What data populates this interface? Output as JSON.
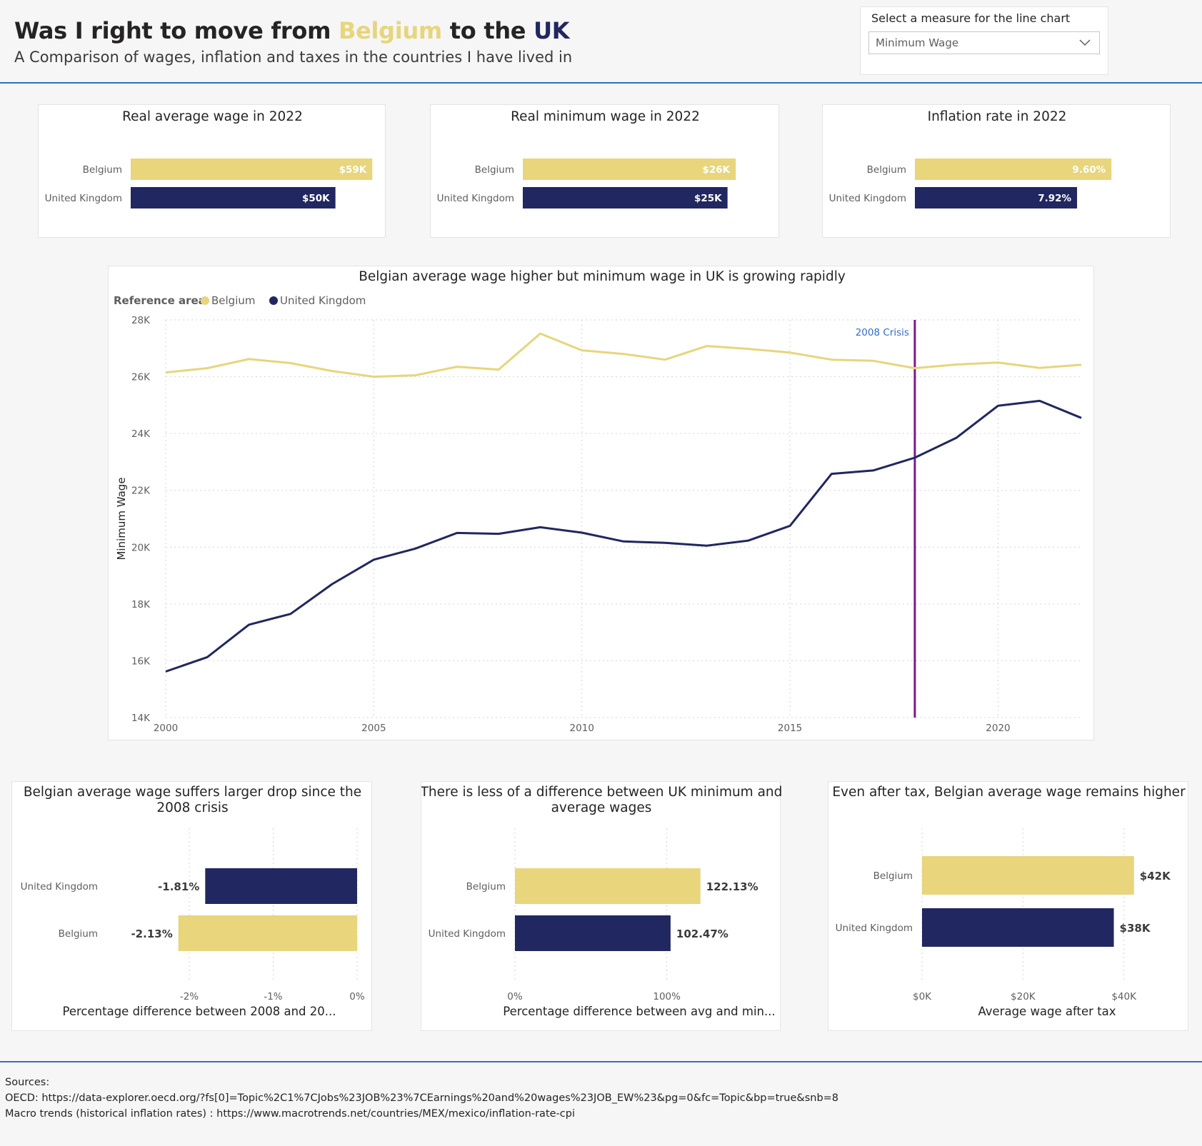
{
  "header": {
    "title_prefix": "Was I right to move from ",
    "title_belgium": "Belgium",
    "title_middle": " to the ",
    "title_uk": "UK",
    "subtitle": "A Comparison of wages, inflation and taxes in the countries I have lived in"
  },
  "slicer": {
    "label": "Select a measure for the line chart",
    "selected": "Minimum Wage"
  },
  "colors": {
    "belgium": "#e8d57c",
    "uk": "#212760",
    "crisis_line": "#7b1a8a",
    "accent": "#2f6fc7"
  },
  "sources": {
    "heading": "Sources:",
    "oecd": "OECD: https://data-explorer.oecd.org/?fs[0]=Topic%2C1%7CJobs%23JOB%23%7CEarnings%20and%20wages%23JOB_EW%23&pg=0&fc=Topic&bp=true&snb=8",
    "macro": "Macro trends (historical inflation rates) : https://www.macrotrends.net/countries/MEX/mexico/inflation-rate-cpi"
  },
  "chart_data": [
    {
      "id": "avg-wage-2022",
      "type": "bar",
      "title": "Real average wage in 2022",
      "categories": [
        "Belgium",
        "United Kingdom"
      ],
      "values": [
        59,
        50
      ],
      "labels": [
        "$59K",
        "$50K"
      ],
      "xlim": [
        0,
        60
      ]
    },
    {
      "id": "min-wage-2022",
      "type": "bar",
      "title": "Real minimum wage in 2022",
      "categories": [
        "Belgium",
        "United Kingdom"
      ],
      "values": [
        26,
        25
      ],
      "labels": [
        "$26K",
        "$25K"
      ],
      "xlim": [
        0,
        30
      ]
    },
    {
      "id": "inflation-2022",
      "type": "bar",
      "title": "Inflation rate in 2022",
      "categories": [
        "Belgium",
        "United Kingdom"
      ],
      "values": [
        9.6,
        7.92
      ],
      "labels": [
        "9.60%",
        "7.92%"
      ],
      "xlim": [
        0,
        12
      ]
    },
    {
      "id": "wage-trend",
      "type": "line",
      "title": "Belgian average wage higher but minimum wage in UK is growing rapidly",
      "legend_title": "Reference area",
      "ylabel": "Minimum Wage",
      "xlabel": "",
      "ylim": [
        14000,
        28000
      ],
      "y_ticks": [
        "14K",
        "16K",
        "18K",
        "20K",
        "22K",
        "24K",
        "26K",
        "28K"
      ],
      "x_ticks": [
        "2000",
        "2005",
        "2010",
        "2015",
        "2020"
      ],
      "xlim": [
        2000,
        2022
      ],
      "annotation": {
        "label": "2008 Crisis",
        "x": 2018
      },
      "x": [
        2000,
        2001,
        2002,
        2003,
        2004,
        2005,
        2006,
        2007,
        2008,
        2009,
        2010,
        2011,
        2012,
        2013,
        2014,
        2015,
        2016,
        2017,
        2018,
        2019,
        2020,
        2021,
        2022
      ],
      "series": [
        {
          "name": "Belgium",
          "values": [
            26150,
            26300,
            26620,
            26480,
            26200,
            26000,
            26050,
            26350,
            26250,
            27520,
            26930,
            26800,
            26600,
            27080,
            26980,
            26850,
            26600,
            26560,
            26300,
            26430,
            26500,
            26310,
            26420
          ]
        },
        {
          "name": "United Kingdom",
          "values": [
            15620,
            16130,
            17270,
            17650,
            18700,
            19560,
            19950,
            20500,
            20470,
            20700,
            20510,
            20200,
            20150,
            20050,
            20230,
            20750,
            22580,
            22700,
            23150,
            23850,
            24980,
            25150,
            24550
          ]
        }
      ]
    },
    {
      "id": "drop-since-2008",
      "type": "bar",
      "title": "Belgian average wage suffers larger drop since the 2008 crisis",
      "xlabel": "Percentage difference between 2008 and 20...",
      "categories": [
        "United Kingdom",
        "Belgium"
      ],
      "values": [
        -1.81,
        -2.13
      ],
      "labels": [
        "-1.81%",
        "-2.13%"
      ],
      "xlim": [
        -2.4,
        0
      ],
      "x_ticks": [
        {
          "v": -2,
          "t": "-2%"
        },
        {
          "v": -1,
          "t": "-1%"
        },
        {
          "v": 0,
          "t": "0%"
        }
      ]
    },
    {
      "id": "avg-min-diff",
      "type": "bar",
      "title": "There is less of a difference between UK minimum and average wages",
      "xlabel": "Percentage difference between avg and min...",
      "categories": [
        "Belgium",
        "United Kingdom"
      ],
      "values": [
        122.13,
        102.47
      ],
      "labels": [
        "122.13%",
        "102.47%"
      ],
      "xlim": [
        0,
        150
      ],
      "x_ticks": [
        {
          "v": 0,
          "t": "0%"
        },
        {
          "v": 100,
          "t": "100%"
        }
      ]
    },
    {
      "id": "after-tax",
      "type": "bar",
      "title": "Even after tax, Belgian average wage remains higher",
      "xlabel": "Average wage after tax",
      "categories": [
        "Belgium",
        "United Kingdom"
      ],
      "values": [
        42,
        38
      ],
      "labels": [
        "$42K",
        "$38K"
      ],
      "xlim": [
        0,
        45
      ],
      "x_ticks": [
        {
          "v": 0,
          "t": "$0K"
        },
        {
          "v": 20,
          "t": "$20K"
        },
        {
          "v": 40,
          "t": "$40K"
        }
      ]
    }
  ]
}
